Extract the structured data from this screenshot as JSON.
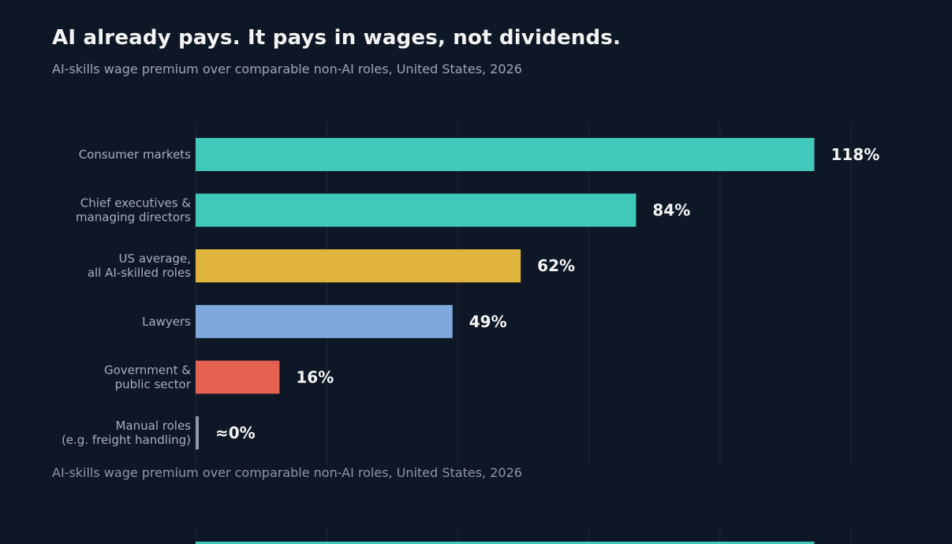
{
  "title": "AI already pays. It pays in wages, not dividends.",
  "subtitle": "AI-skills wage premium over comparable non-AI roles, United States, 2026",
  "colors": {
    "background": "#0e1726",
    "teal": "#40c9bb",
    "gold": "#e0b33c",
    "blue": "#7fa8dc",
    "red": "#e56252",
    "gray": "#8e9aab"
  },
  "chart_data": {
    "type": "bar",
    "orientation": "horizontal",
    "title": "AI already pays. It pays in wages, not dividends.",
    "subtitle": "AI-skills wage premium over comparable non-AI roles, United States, 2026",
    "xlim": [
      0,
      125
    ],
    "grid": true,
    "categories": [
      [
        "Consumer markets"
      ],
      [
        "Chief executives &",
        "managing directors"
      ],
      [
        "US average,",
        "all AI-skilled roles"
      ],
      [
        "Lawyers"
      ],
      [
        "Government &",
        "public sector"
      ],
      [
        "Manual roles",
        "(e.g. freight handling)"
      ]
    ],
    "values": [
      118,
      84,
      62,
      49,
      16,
      0
    ],
    "value_labels": [
      "118%",
      "84%",
      "62%",
      "49%",
      "16%",
      "≈0%"
    ],
    "bar_colors": [
      "#40c9bb",
      "#40c9bb",
      "#e0b33c",
      "#7fa8dc",
      "#e56252",
      "#8e9aab"
    ]
  }
}
